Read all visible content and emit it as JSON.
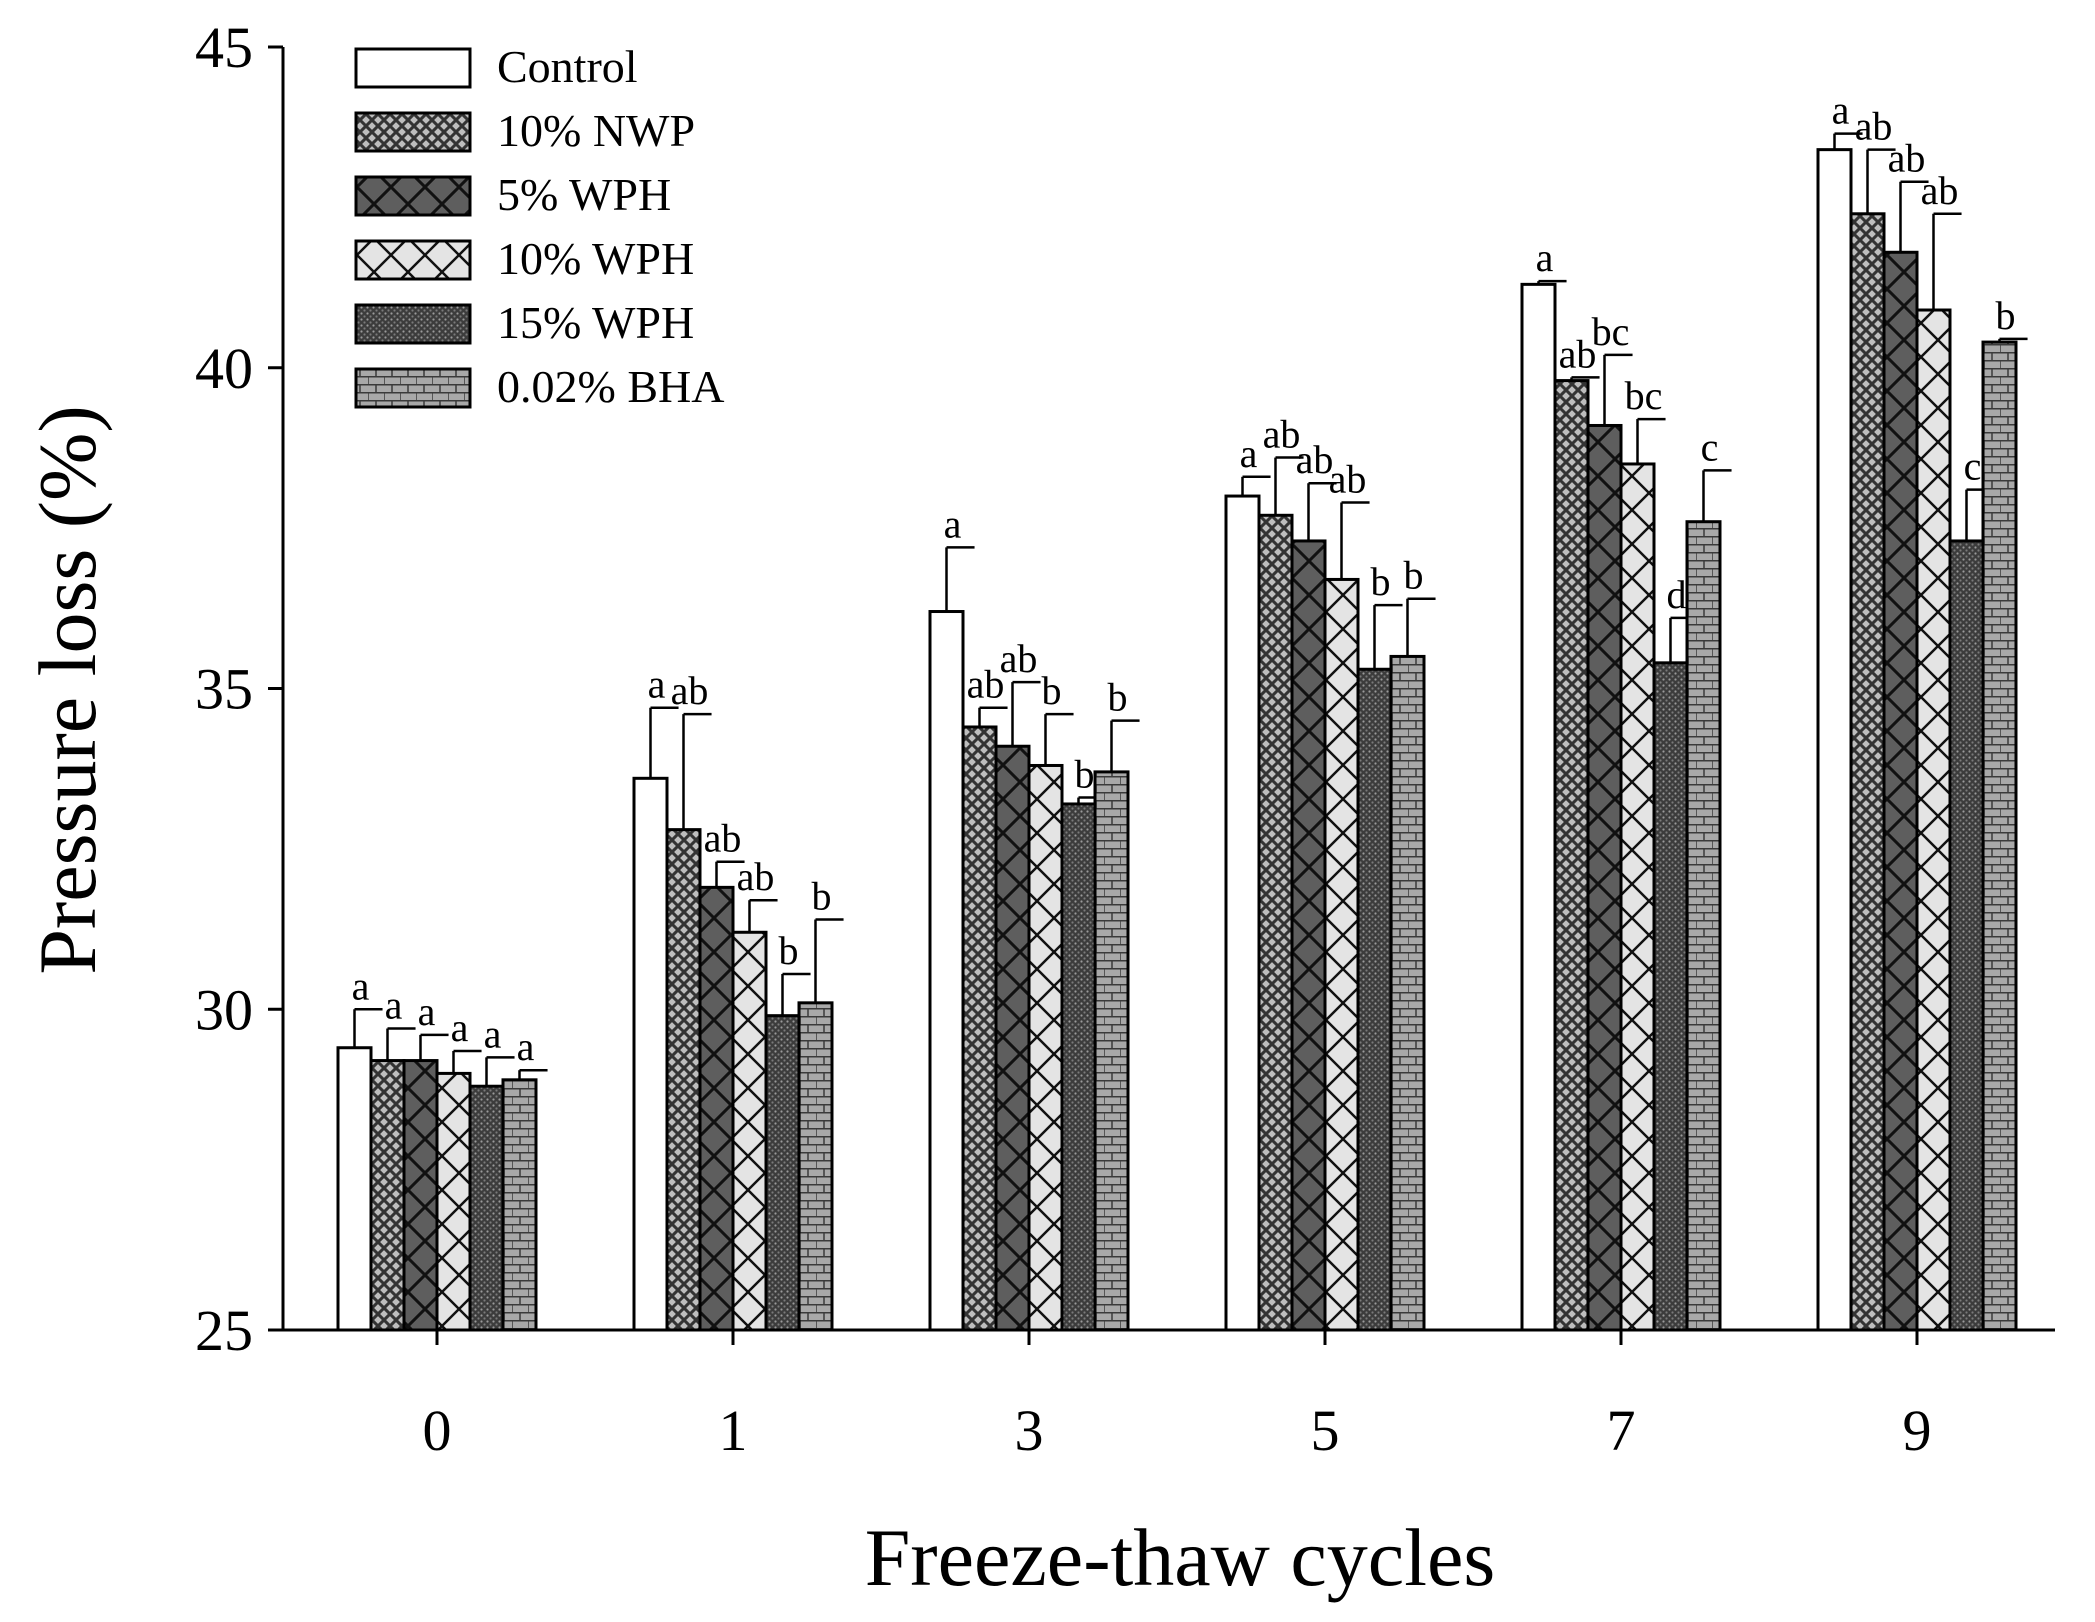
{
  "chart_data": {
    "type": "bar",
    "title": "",
    "xlabel": "Freeze-thaw cycles",
    "ylabel": "Pressure loss (%)",
    "ylim": [
      25,
      45
    ],
    "yticks": [
      "25",
      "30",
      "35",
      "40",
      "45"
    ],
    "categories": [
      "0",
      "1",
      "3",
      "5",
      "7",
      "9"
    ],
    "legend_position": "top-left",
    "series": [
      {
        "name": "Control",
        "pattern": "white",
        "values": [
          29.4,
          33.6,
          36.2,
          38.0,
          41.3,
          43.4
        ],
        "errors": [
          0.6,
          1.1,
          1.0,
          0.3,
          0.05,
          0.25
        ],
        "labels": [
          "a",
          "a",
          "a",
          "a",
          "a",
          "a"
        ]
      },
      {
        "name": "10% NWP",
        "pattern": "crosshatch",
        "values": [
          29.2,
          32.8,
          34.4,
          37.7,
          39.8,
          42.4
        ],
        "errors": [
          0.5,
          1.8,
          0.3,
          0.9,
          0.05,
          1.0
        ],
        "labels": [
          "a",
          "ab",
          "ab",
          "ab",
          "ab",
          "ab"
        ]
      },
      {
        "name": "5% WPH",
        "pattern": "dark-x",
        "values": [
          29.2,
          31.9,
          34.1,
          37.3,
          39.1,
          41.8
        ],
        "errors": [
          0.4,
          0.4,
          1.0,
          0.9,
          1.1,
          1.1
        ],
        "labels": [
          "a",
          "ab",
          "ab",
          "ab",
          "bc",
          "ab"
        ]
      },
      {
        "name": "10% WPH",
        "pattern": "light-x",
        "values": [
          29.0,
          31.2,
          33.8,
          36.7,
          38.5,
          40.9
        ],
        "errors": [
          0.35,
          0.5,
          0.8,
          1.2,
          0.7,
          1.5
        ],
        "labels": [
          "a",
          "ab",
          "b",
          "ab",
          "bc",
          "ab"
        ]
      },
      {
        "name": "15% WPH",
        "pattern": "dark-dots",
        "values": [
          28.8,
          29.9,
          33.2,
          35.3,
          35.4,
          37.3
        ],
        "errors": [
          0.45,
          0.65,
          0.1,
          1.0,
          0.7,
          0.8
        ],
        "labels": [
          "a",
          "b",
          "b",
          "b",
          "d",
          "c"
        ]
      },
      {
        "name": "0.02% BHA",
        "pattern": "brick",
        "values": [
          28.9,
          30.1,
          33.7,
          35.5,
          37.6,
          40.4
        ],
        "errors": [
          0.15,
          1.3,
          0.8,
          0.9,
          0.8,
          0.05
        ],
        "labels": [
          "a",
          "b",
          "b",
          "b",
          "c",
          "b"
        ]
      }
    ]
  }
}
